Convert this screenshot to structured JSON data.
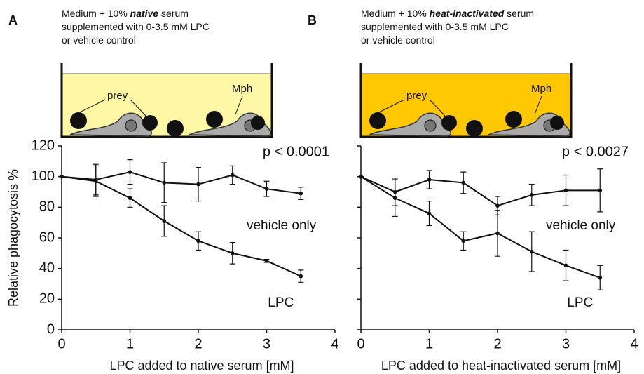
{
  "chart_data": [
    {
      "type": "line",
      "panel": "A",
      "description": [
        [
          "Medium + 10% ",
          "native",
          " serum"
        ],
        [
          "supplemented with 0-3.5 mM LPC"
        ],
        [
          "or vehicle control"
        ]
      ],
      "medium_color": "#fdf7a6",
      "prey_label": "prey",
      "macrophage_label": "Mph",
      "p_value": "p < 0.0001",
      "x": [
        0,
        0.5,
        1,
        1.5,
        2,
        2.5,
        3,
        3.5
      ],
      "xlim": [
        0,
        4
      ],
      "xticks": [
        0,
        1,
        2,
        3,
        4
      ],
      "ylim": [
        0,
        120
      ],
      "yticks": [
        0,
        20,
        40,
        60,
        80,
        100,
        120
      ],
      "xlabel": "LPC added to native serum [mM]",
      "ylabel": "Relative phagocytosis %",
      "series": [
        {
          "name": "vehicle only",
          "color": "#111111",
          "values": [
            100,
            98,
            103,
            96,
            95,
            101,
            92,
            89
          ],
          "errors": [
            0,
            10,
            8,
            13,
            11,
            6,
            5,
            4
          ]
        },
        {
          "name": "LPC",
          "color": "#111111",
          "values": [
            100,
            97,
            86,
            71,
            58,
            50,
            45,
            35
          ],
          "errors": [
            0,
            10,
            6,
            10,
            6,
            7,
            1,
            4
          ]
        }
      ]
    },
    {
      "type": "line",
      "panel": "B",
      "description": [
        [
          "Medium + 10% ",
          "heat-inactivated",
          " serum"
        ],
        [
          "supplemented with 0-3.5 mM LPC"
        ],
        [
          "or vehicle control"
        ]
      ],
      "medium_color": "#ffc800",
      "prey_label": "prey",
      "macrophage_label": "Mph",
      "p_value": "p < 0.0027",
      "x": [
        0,
        0.5,
        1,
        1.5,
        2,
        2.5,
        3,
        3.5
      ],
      "xlim": [
        0,
        4
      ],
      "xticks": [
        0,
        1,
        2,
        3,
        4
      ],
      "ylim": [
        0,
        120
      ],
      "yticks": [
        0,
        20,
        40,
        60,
        80,
        100,
        120
      ],
      "xlabel": "LPC added to heat-inactivated  serum [mM]",
      "series": [
        {
          "name": "vehicle only",
          "color": "#111111",
          "values": [
            100,
            90,
            98,
            96,
            81,
            88,
            91,
            91
          ],
          "errors": [
            0,
            9,
            6,
            7,
            6,
            7,
            10,
            14
          ]
        },
        {
          "name": "LPC",
          "color": "#111111",
          "values": [
            100,
            86,
            76,
            58,
            63,
            51,
            42,
            34
          ],
          "errors": [
            0,
            12,
            8,
            6,
            15,
            13,
            10,
            8
          ]
        }
      ]
    }
  ]
}
